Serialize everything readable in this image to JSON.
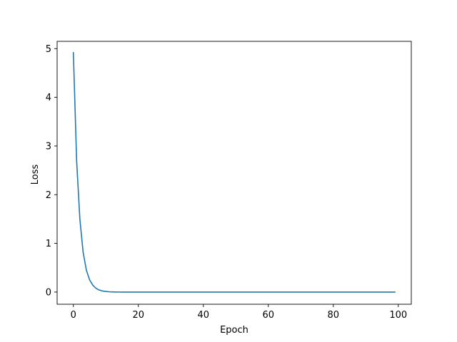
{
  "chart_data": {
    "type": "line",
    "title": "",
    "xlabel": "Epoch",
    "ylabel": "Loss",
    "xlim": [
      -5,
      104
    ],
    "ylim": [
      -0.25,
      5.15
    ],
    "xticks": [
      0,
      20,
      40,
      60,
      80,
      100
    ],
    "yticks": [
      0,
      1,
      2,
      3,
      4,
      5
    ],
    "grid": false,
    "line_color": "#1f77b4",
    "series": [
      {
        "values": [
          {
            "x": 0,
            "y": 4.92
          },
          {
            "x": 1,
            "y": 2.7
          },
          {
            "x": 2,
            "y": 1.5
          },
          {
            "x": 3,
            "y": 0.82
          },
          {
            "x": 4,
            "y": 0.45
          },
          {
            "x": 5,
            "y": 0.25
          },
          {
            "x": 6,
            "y": 0.14
          },
          {
            "x": 7,
            "y": 0.075
          },
          {
            "x": 8,
            "y": 0.04
          },
          {
            "x": 9,
            "y": 0.022
          },
          {
            "x": 10,
            "y": 0.012
          },
          {
            "x": 11,
            "y": 0.006
          },
          {
            "x": 12,
            "y": 0.003
          },
          {
            "x": 13,
            "y": 0.0015
          },
          {
            "x": 14,
            "y": 0.0007
          },
          {
            "x": 15,
            "y": 0.0003
          },
          {
            "x": 20,
            "y": 0.0
          },
          {
            "x": 30,
            "y": 0.0
          },
          {
            "x": 40,
            "y": 0.0
          },
          {
            "x": 50,
            "y": 0.0
          },
          {
            "x": 60,
            "y": 0.0
          },
          {
            "x": 70,
            "y": 0.0
          },
          {
            "x": 80,
            "y": 0.0
          },
          {
            "x": 90,
            "y": 0.0
          },
          {
            "x": 99,
            "y": 0.0
          }
        ]
      }
    ]
  }
}
